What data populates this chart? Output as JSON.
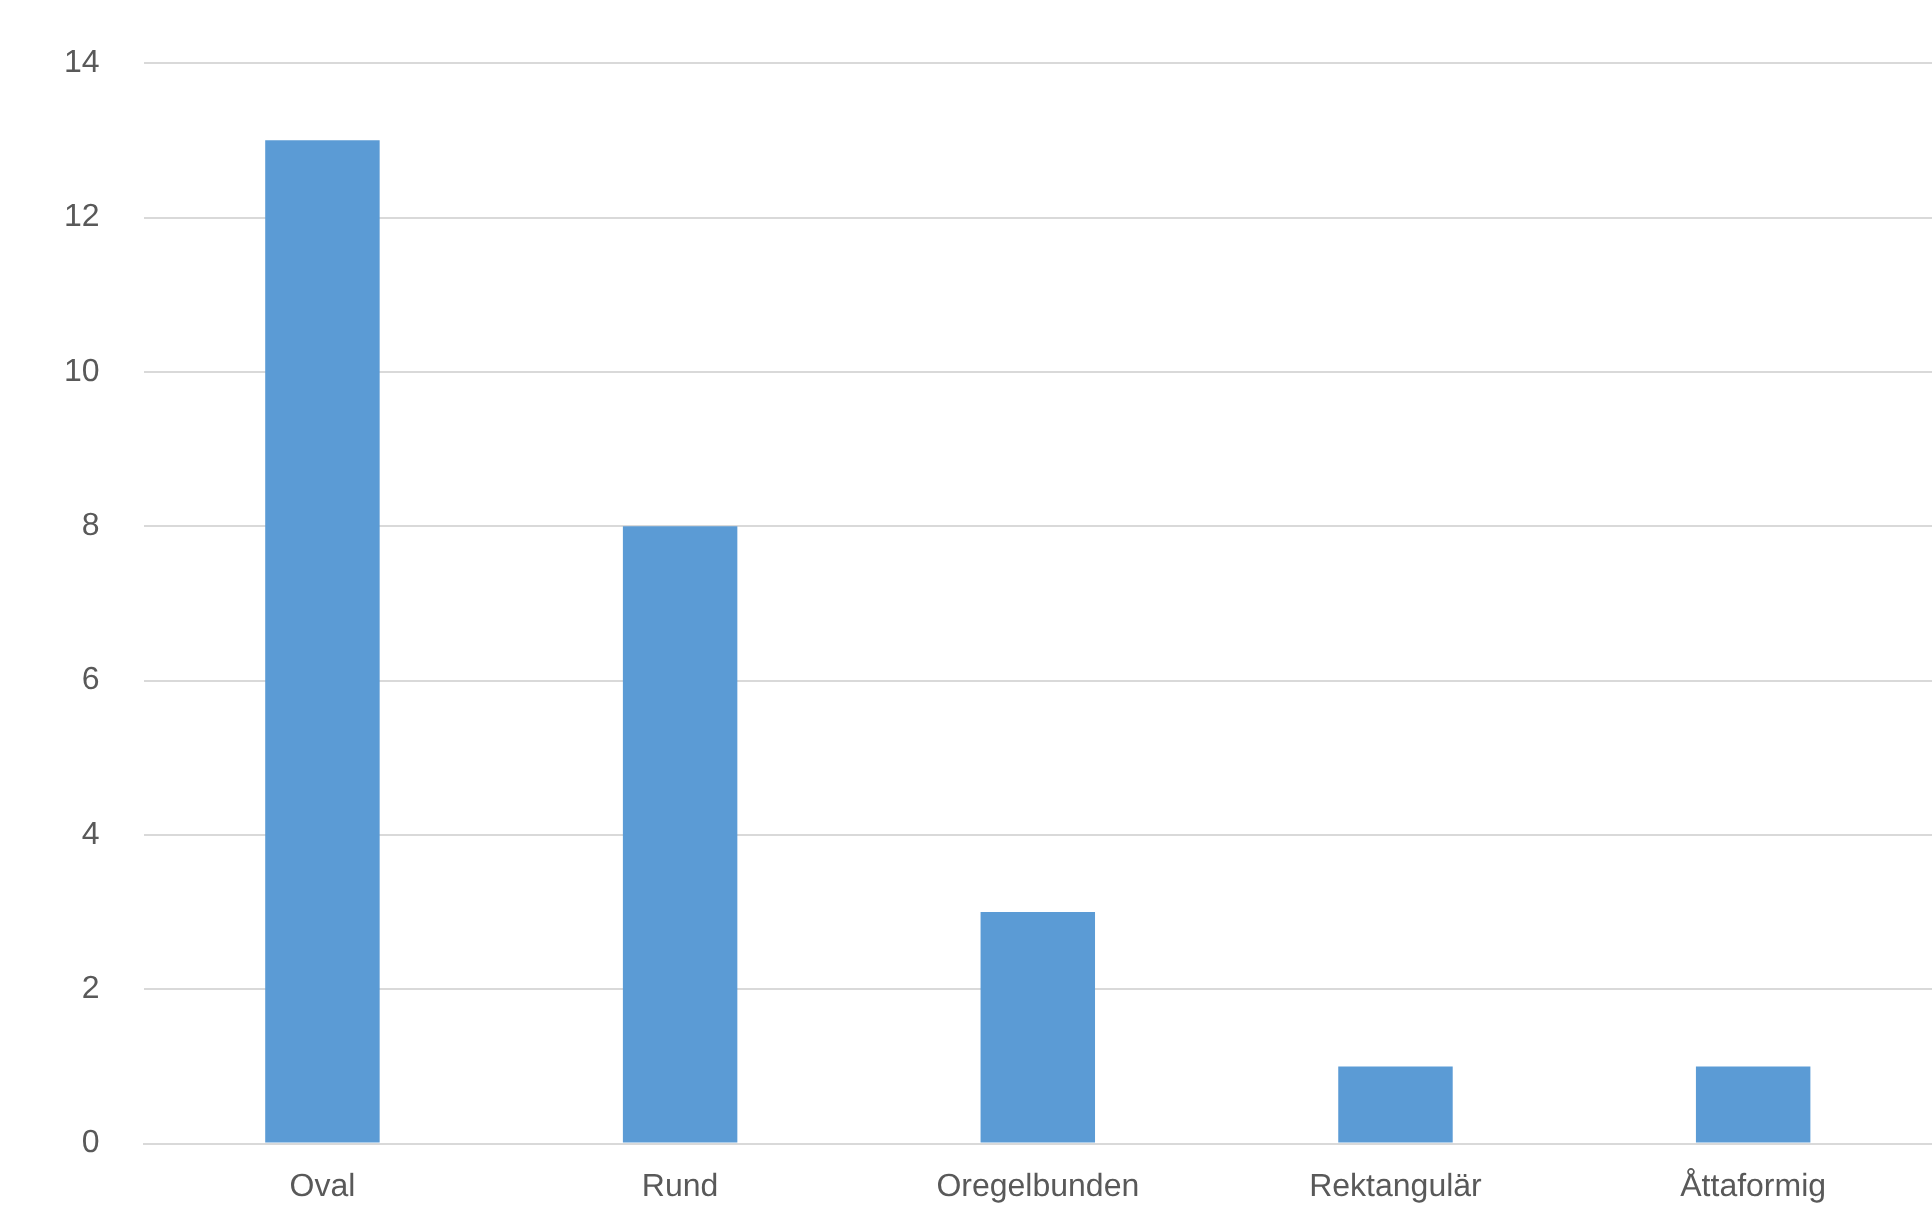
{
  "chart_data": {
    "type": "bar",
    "categories": [
      "Oval",
      "Rund",
      "Oregelbunden",
      "Rektangulär",
      "Åttaformig"
    ],
    "values": [
      13,
      8,
      3,
      1,
      1
    ],
    "color": "#5b9bd5",
    "ylim": [
      0,
      14
    ],
    "yticks": [
      0,
      2,
      4,
      6,
      8,
      10,
      12,
      14
    ],
    "grid": "y",
    "legend": false
  }
}
